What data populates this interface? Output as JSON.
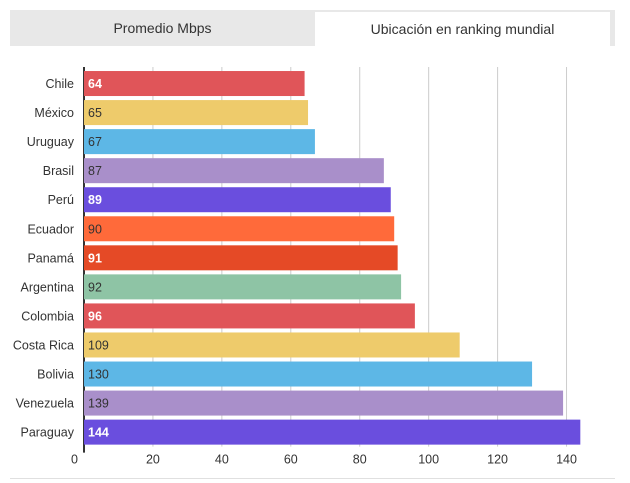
{
  "tabs": [
    {
      "label": "Promedio Mbps",
      "active": false
    },
    {
      "label": "Ubicación en ranking mundial",
      "active": true
    }
  ],
  "chart_data": {
    "type": "bar",
    "orientation": "horizontal",
    "categories": [
      "Chile",
      "México",
      "Uruguay",
      "Brasil",
      "Perú",
      "Ecuador",
      "Panamá",
      "Argentina",
      "Colombia",
      "Costa Rica",
      "Bolivia",
      "Venezuela",
      "Paraguay"
    ],
    "values": [
      64,
      65,
      67,
      87,
      89,
      90,
      91,
      92,
      96,
      109,
      130,
      139,
      144
    ],
    "colors": [
      "#e05559",
      "#eecb6b",
      "#5db7e6",
      "#a98fca",
      "#6a4ede",
      "#ff6a3a",
      "#e54a26",
      "#8ec4a5",
      "#e05559",
      "#eecb6b",
      "#5db7e6",
      "#a98fca",
      "#6a4ede"
    ],
    "label_colors": [
      "#ffffff",
      "#333333",
      "#333333",
      "#333333",
      "#ffffff",
      "#333333",
      "#ffffff",
      "#333333",
      "#ffffff",
      "#333333",
      "#333333",
      "#333333",
      "#ffffff"
    ],
    "xlim": [
      0,
      150
    ],
    "xticks": [
      0,
      20,
      40,
      60,
      80,
      100,
      120,
      140
    ],
    "grid": true,
    "title": "",
    "xlabel": "",
    "ylabel": ""
  }
}
